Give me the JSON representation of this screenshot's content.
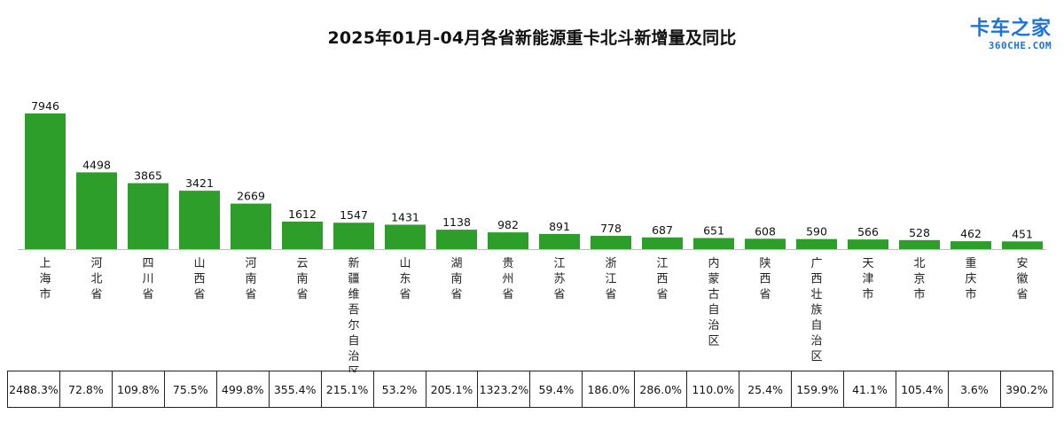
{
  "chart_data": {
    "type": "bar",
    "title": "2025年01月-04月各省新能源重卡北斗新增量及同比",
    "categories": [
      "上海市",
      "河北省",
      "四川省",
      "山西省",
      "河南省",
      "云南省",
      "新疆维吾尔自治区",
      "山东省",
      "湖南省",
      "贵州省",
      "江苏省",
      "浙江省",
      "江西省",
      "内蒙古自治区",
      "陕西省",
      "广西壮族自治区",
      "天津市",
      "北京市",
      "重庆市",
      "安徽省"
    ],
    "values": [
      7946,
      4498,
      3865,
      3421,
      2669,
      1612,
      1547,
      1431,
      1138,
      982,
      891,
      778,
      687,
      651,
      608,
      590,
      566,
      528,
      462,
      451
    ],
    "yoy": [
      "2488.3%",
      "72.8%",
      "109.8%",
      "75.5%",
      "499.8%",
      "355.4%",
      "215.1%",
      "53.2%",
      "205.1%",
      "1323.2%",
      "59.4%",
      "186.0%",
      "286.0%",
      "110.0%",
      "25.4%",
      "159.9%",
      "41.1%",
      "105.4%",
      "3.6%",
      "390.2%"
    ],
    "ylim": [
      0,
      7946
    ],
    "grid": false,
    "bar_color": "#2e9e2b"
  },
  "logo": {
    "cn": "卡车之家",
    "en": "360CHE.COM",
    "color": "#1e73d8"
  }
}
